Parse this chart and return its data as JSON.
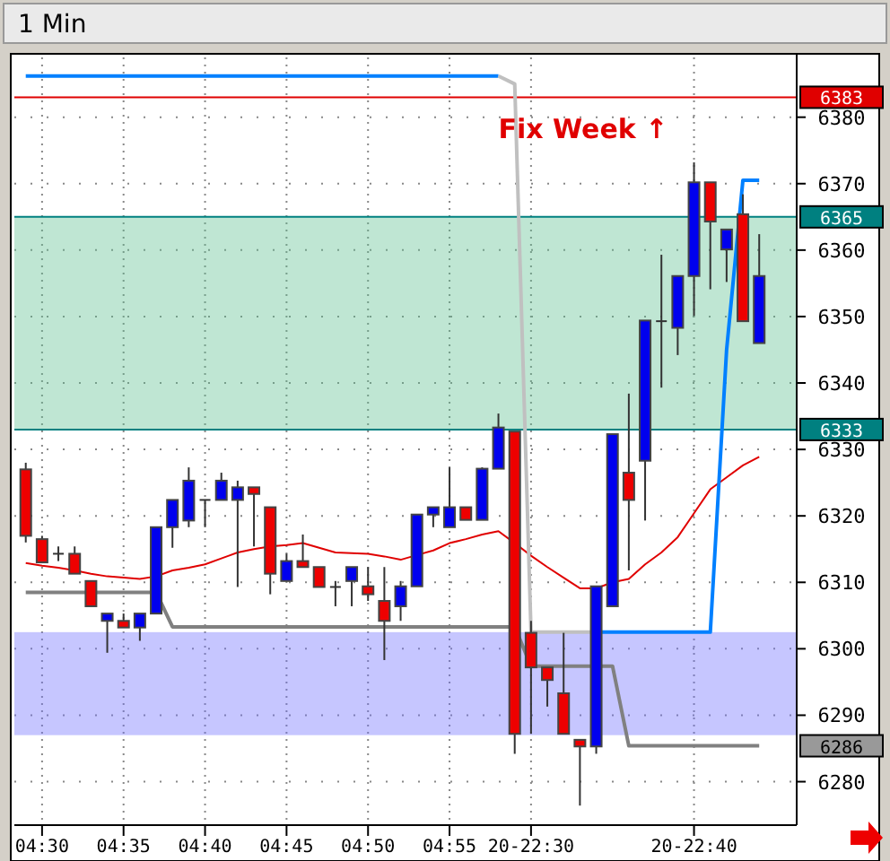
{
  "chart_data": {
    "type": "candlestick",
    "title": "1 Min",
    "categories": [
      null,
      "04:30",
      null,
      null,
      null,
      null,
      "04:35",
      null,
      null,
      null,
      null,
      "04:40",
      null,
      null,
      null,
      null,
      "04:45",
      null,
      null,
      null,
      null,
      "04:50",
      null,
      null,
      null,
      null,
      "04:55",
      null,
      null,
      null,
      null,
      "20-22:30",
      null,
      null,
      null,
      null,
      null,
      null,
      null,
      null,
      null,
      "20-22:40",
      null,
      null,
      null,
      null
    ],
    "ohlc": [
      [
        6327,
        6328,
        6316,
        6317
      ],
      [
        6316.5,
        6317,
        6313,
        6313
      ],
      [
        6314.3,
        6315.4,
        6313.2,
        6314.3
      ],
      [
        6314.3,
        6315.4,
        6311.3,
        6311.3
      ],
      [
        6310.2,
        6310.2,
        6306.4,
        6306.4
      ],
      [
        6304.2,
        6305.3,
        6299.4,
        6305.3
      ],
      [
        6304.2,
        6305.3,
        6303.2,
        6303.2
      ],
      [
        6303.2,
        6305.3,
        6301.2,
        6305.3
      ],
      [
        6305.3,
        6318.3,
        6305.3,
        6318.3
      ],
      [
        6318.3,
        6322.4,
        6315.2,
        6322.4
      ],
      [
        6319.3,
        6327.3,
        6318.3,
        6325.3
      ],
      [
        6322.4,
        6322.4,
        6318.3,
        6322.4
      ],
      [
        6322.4,
        6326.5,
        6322.4,
        6325.3
      ],
      [
        6322.4,
        6325.3,
        6309.3,
        6324.3
      ],
      [
        6324.3,
        6324.3,
        6315.4,
        6323.3
      ],
      [
        6321.3,
        6321.3,
        6308.2,
        6311.3
      ],
      [
        6310.2,
        6314.3,
        6310.2,
        6313.2
      ],
      [
        6313.2,
        6317.2,
        6312.3,
        6312.3
      ],
      [
        6312.3,
        6312.3,
        6309.3,
        6309.3
      ],
      [
        6309.3,
        6310.2,
        6306.4,
        6309.3
      ],
      [
        6310.2,
        6312.3,
        6306.4,
        6312.3
      ],
      [
        6309.4,
        6312.3,
        6307.2,
        6308.2
      ],
      [
        6307.2,
        6312.3,
        6298.3,
        6304.2
      ],
      [
        6306.4,
        6310.2,
        6304.2,
        6309.4
      ],
      [
        6309.4,
        6320.2,
        6309.4,
        6320.2
      ],
      [
        6320.2,
        6321.3,
        6318.3,
        6321.3
      ],
      [
        6318.3,
        6327.3,
        6318.3,
        6321.3
      ],
      [
        6321.3,
        6321.3,
        6319.4,
        6319.4
      ],
      [
        6319.4,
        6327.3,
        6319.4,
        6327.1
      ],
      [
        6327.1,
        6335.4,
        6327.1,
        6333.3
      ],
      [
        6332.7,
        6332.7,
        6284.2,
        6287.2
      ],
      [
        6302.4,
        6304.2,
        6287.2,
        6297.2
      ],
      [
        6297.2,
        6297.2,
        6291.3,
        6295.3
      ],
      [
        6293.3,
        6302.4,
        6287.2,
        6287.2
      ],
      [
        6286.3,
        6286.3,
        6276.4,
        6285.3
      ],
      [
        6285.3,
        6309.4,
        6284.2,
        6309.4
      ],
      [
        6306.4,
        6332.3,
        6306.4,
        6332.3
      ],
      [
        6326.5,
        6338.4,
        6311.8,
        6322.4
      ],
      [
        6328.3,
        6349.4,
        6319.3,
        6349.4
      ],
      [
        6349.3,
        6359.3,
        6339.3,
        6349.3
      ],
      [
        6348.3,
        6356.1,
        6344.2,
        6356.1
      ],
      [
        6356.1,
        6373.2,
        6350.1,
        6370.2
      ],
      [
        6370.2,
        6370.2,
        6354.1,
        6364.3
      ],
      [
        6360.1,
        6363.1,
        6355.2,
        6363.1
      ],
      [
        6365.4,
        6368.4,
        6349.3,
        6349.3
      ],
      [
        6346,
        6362.4,
        6346,
        6356.1
      ]
    ],
    "series": [
      {
        "type": "line",
        "color": "#e00000",
        "values": [
          6312.9,
          6312.5,
          6312.2,
          6311.8,
          6311.3,
          6310.9,
          6310.7,
          6310.5,
          6310.9,
          6311.8,
          6312.2,
          6312.7,
          6313.6,
          6314.5,
          6315,
          6315.4,
          6315.6,
          6315.9,
          6315.2,
          6314.5,
          6314.4,
          6314.3,
          6313.9,
          6313.4,
          6314.1,
          6314.8,
          6315.9,
          6316.5,
          6317.2,
          6317.7,
          6315.9,
          6314,
          6312.3,
          6310.7,
          6309.1,
          6309.1,
          6310,
          6310.5,
          6312.7,
          6314.5,
          6316.8,
          6320.4,
          6324,
          6325.8,
          6327.6,
          6328.9
        ]
      },
      {
        "type": "line",
        "color": "#808080",
        "values": [
          6308.5,
          6308.5,
          6308.5,
          6308.5,
          6308.5,
          6308.5,
          6308.5,
          6308.5,
          6308.5,
          6303.3,
          6303.3,
          6303.3,
          6303.3,
          6303.3,
          6303.3,
          6303.3,
          6303.3,
          6303.3,
          6303.3,
          6303.3,
          6303.3,
          6303.3,
          6303.3,
          6303.3,
          6303.3,
          6303.3,
          6303.3,
          6303.3,
          6303.3,
          6303.3,
          6303.3,
          6297.4,
          6297.4,
          6297.4,
          6297.4,
          6297.4,
          6297.4,
          6285.4,
          6285.4,
          6285.4,
          6285.4,
          6285.4,
          6285.4,
          6285.4,
          6285.4,
          6285.4
        ]
      },
      {
        "type": "line",
        "color": "#0080ff",
        "values": [
          6386.2,
          6386.2,
          6386.2,
          6386.2,
          6386.2,
          6386.2,
          6386.2,
          6386.2,
          6386.2,
          6386.2,
          6386.2,
          6386.2,
          6386.2,
          6386.2,
          6386.2,
          6386.2,
          6386.2,
          6386.2,
          6386.2,
          6386.2,
          6386.2,
          6386.2,
          6386.2,
          6386.2,
          6386.2,
          6386.2,
          6386.2,
          6386.2,
          6386.2,
          6386.2,
          null,
          null,
          null,
          null,
          null,
          6302.5,
          6302.5,
          6302.5,
          6302.5,
          6302.5,
          6302.5,
          6302.5,
          6302.5,
          6345,
          6370.5,
          6370.5
        ]
      },
      {
        "type": "line",
        "color": "#c0c0c0",
        "values": [
          null,
          null,
          null,
          null,
          null,
          null,
          null,
          null,
          null,
          null,
          null,
          null,
          null,
          null,
          null,
          null,
          null,
          null,
          null,
          null,
          null,
          null,
          null,
          null,
          null,
          null,
          null,
          null,
          null,
          6386.2,
          6385,
          6302.5,
          6302.5,
          6302.5,
          6302.5,
          6302.5,
          null,
          null,
          null,
          null,
          null,
          null,
          null,
          null,
          null,
          null
        ]
      }
    ],
    "ylim": [
      6274,
      6389
    ],
    "yticks": [
      6280,
      6290,
      6300,
      6310,
      6320,
      6330,
      6340,
      6350,
      6360,
      6370,
      6380
    ],
    "grid": true,
    "ref_lines": [
      {
        "axis": "y",
        "value": 6383,
        "label": "6383",
        "color": "#e00000"
      },
      {
        "axis": "y",
        "value": 6365,
        "label": "6365",
        "color": "#008080"
      },
      {
        "axis": "y",
        "value": 6333,
        "label": "6333",
        "color": "#008080"
      }
    ],
    "bands": [
      {
        "axis": "y",
        "from": 6287,
        "to": 6302.5,
        "color": "#7070ff"
      },
      {
        "axis": "y",
        "from": 6333,
        "to": 6365,
        "color": "#60c090"
      }
    ],
    "annotations": [
      "Fix Week ↑",
      "6286"
    ]
  }
}
